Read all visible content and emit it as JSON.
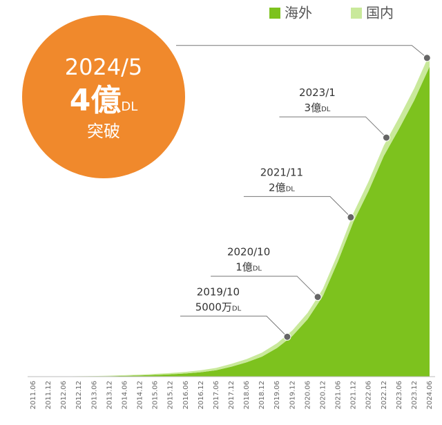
{
  "chart_data": {
    "type": "stacked-area",
    "categories": [
      "2011.06",
      "2011.12",
      "2012.06",
      "2012.12",
      "2013.06",
      "2013.12",
      "2014.06",
      "2014.12",
      "2015.06",
      "2015.12",
      "2016.06",
      "2016.12",
      "2017.06",
      "2017.12",
      "2018.06",
      "2018.12",
      "2019.06",
      "2019.12",
      "2020.06",
      "2020.12",
      "2021.06",
      "2021.12",
      "2022.06",
      "2022.12",
      "2023.06",
      "2023.12",
      "2024.06"
    ],
    "series": [
      {
        "name": "海外",
        "color": "#7dc21e",
        "values": [
          0,
          0,
          0.001,
          0.002,
          0.004,
          0.006,
          0.01,
          0.015,
          0.022,
          0.029,
          0.04,
          0.055,
          0.08,
          0.125,
          0.18,
          0.25,
          0.36,
          0.51,
          0.72,
          1.01,
          1.45,
          1.94,
          2.33,
          2.77,
          3.11,
          3.47,
          3.89
        ]
      },
      {
        "name": "国内",
        "color": "#c9e99b",
        "values": [
          0,
          0.001,
          0.002,
          0.003,
          0.004,
          0.006,
          0.008,
          0.01,
          0.013,
          0.016,
          0.02,
          0.025,
          0.03,
          0.035,
          0.04,
          0.05,
          0.06,
          0.07,
          0.08,
          0.09,
          0.1,
          0.11,
          0.12,
          0.13,
          0.14,
          0.15,
          0.16
        ]
      }
    ],
    "annotations": [
      {
        "date": "2019/10",
        "value": 0.5,
        "amount": "5000万",
        "unit": "DL"
      },
      {
        "date": "2020/10",
        "value": 1,
        "amount": "1億",
        "unit": "DL"
      },
      {
        "date": "2021/11",
        "value": 2,
        "amount": "2億",
        "unit": "DL"
      },
      {
        "date": "2023/1",
        "value": 3,
        "amount": "3億",
        "unit": "DL"
      },
      {
        "date": "2024/5",
        "value": 4,
        "amount": "4億",
        "unit": "DL",
        "badge": "突破"
      }
    ]
  }
}
